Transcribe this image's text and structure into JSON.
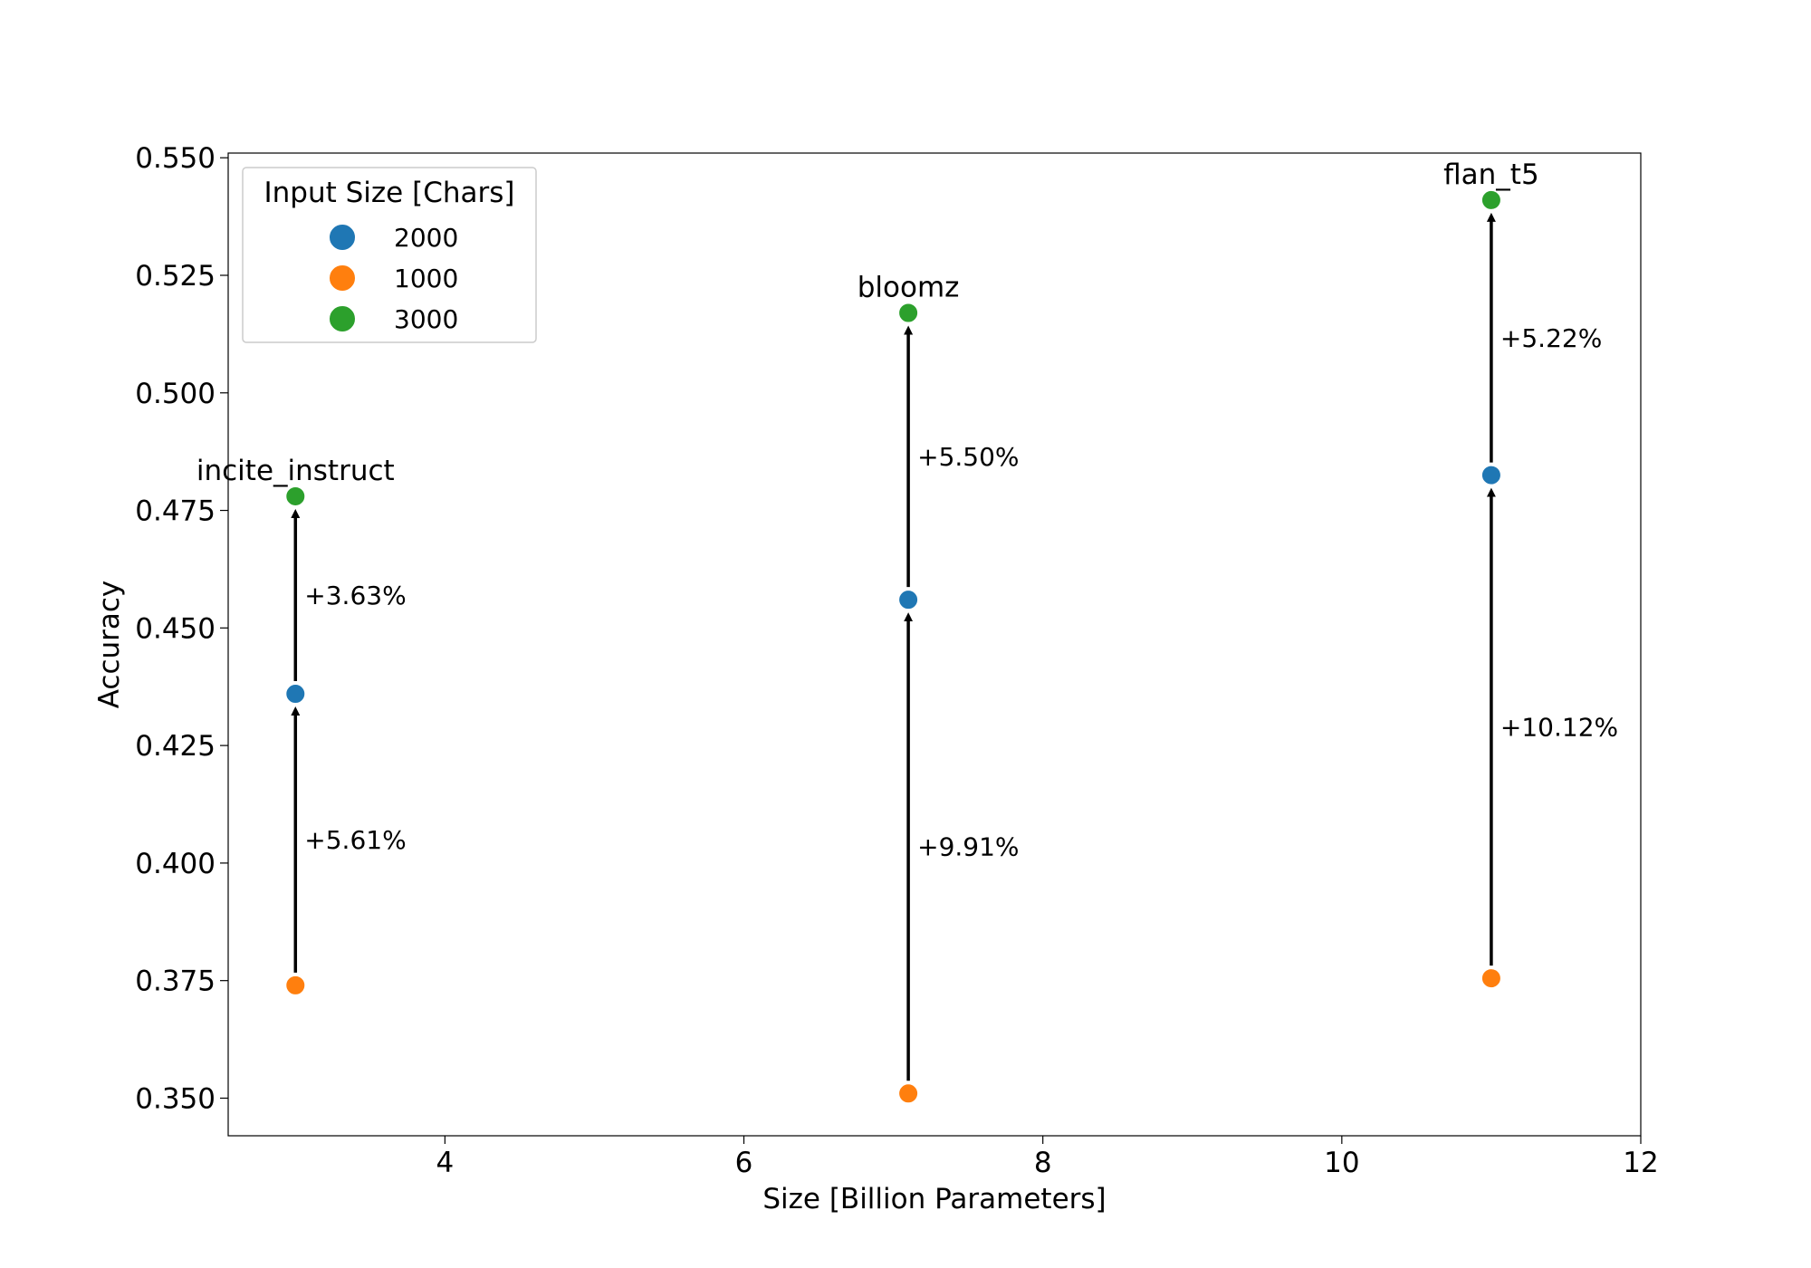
{
  "chart_data": {
    "type": "scatter",
    "title": "",
    "xlabel": "Size [Billion Parameters]",
    "ylabel": "Accuracy",
    "xlim": [
      2.55,
      12
    ],
    "ylim": [
      0.342,
      0.551
    ],
    "xticks": [
      4,
      6,
      8,
      10,
      12
    ],
    "yticks": [
      0.35,
      0.375,
      0.4,
      0.425,
      0.45,
      0.475,
      0.5,
      0.525,
      0.55
    ],
    "ytick_labels": [
      "0.350",
      "0.375",
      "0.400",
      "0.425",
      "0.450",
      "0.475",
      "0.500",
      "0.525",
      "0.550"
    ],
    "grid": false,
    "legend": {
      "title": "Input Size [Chars]",
      "position": "top-left",
      "entries": [
        {
          "name": "2000",
          "color": "#1f77b4"
        },
        {
          "name": "1000",
          "color": "#ff7f0e"
        },
        {
          "name": "3000",
          "color": "#2ca02c"
        }
      ]
    },
    "series": [
      {
        "name": "2000",
        "color": "#1f77b4",
        "x": [
          3.0,
          7.1,
          11.0
        ],
        "y": [
          0.436,
          0.456,
          0.4825
        ]
      },
      {
        "name": "1000",
        "color": "#ff7f0e",
        "x": [
          3.0,
          7.1,
          11.0
        ],
        "y": [
          0.374,
          0.351,
          0.3755
        ]
      },
      {
        "name": "3000",
        "color": "#2ca02c",
        "x": [
          3.0,
          7.1,
          11.0
        ],
        "y": [
          0.478,
          0.517,
          0.541
        ]
      }
    ],
    "point_labels": [
      {
        "text": "incite_instruct",
        "x": 3.0,
        "y": 0.478
      },
      {
        "text": "bloomz",
        "x": 7.1,
        "y": 0.517
      },
      {
        "text": "flan_t5",
        "x": 11.0,
        "y": 0.541
      }
    ],
    "arrows": [
      {
        "x": 3.0,
        "y_from": 0.374,
        "y_to": 0.436,
        "label": "+5.61%"
      },
      {
        "x": 3.0,
        "y_from": 0.436,
        "y_to": 0.478,
        "label": "+3.63%"
      },
      {
        "x": 7.1,
        "y_from": 0.351,
        "y_to": 0.456,
        "label": "+9.91%"
      },
      {
        "x": 7.1,
        "y_from": 0.456,
        "y_to": 0.517,
        "label": "+5.50%"
      },
      {
        "x": 11.0,
        "y_from": 0.3755,
        "y_to": 0.4825,
        "label": "+10.12%"
      },
      {
        "x": 11.0,
        "y_from": 0.4825,
        "y_to": 0.541,
        "label": "+5.22%"
      }
    ]
  }
}
